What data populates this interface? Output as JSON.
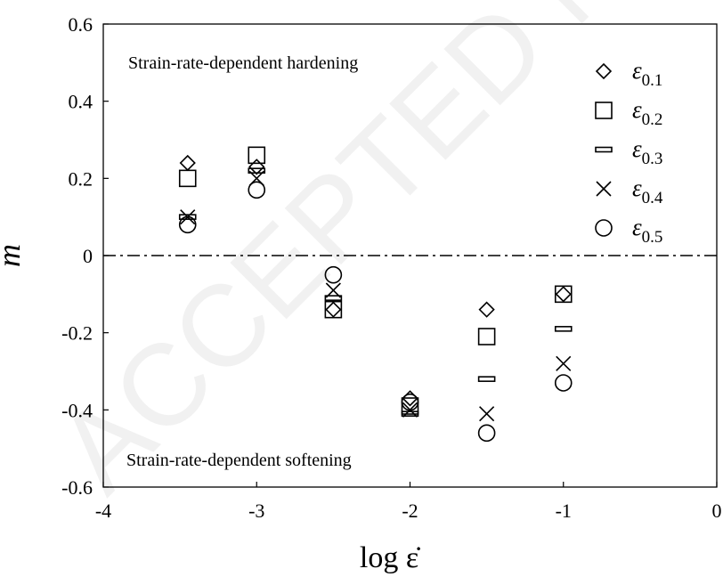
{
  "chart_data": {
    "type": "scatter",
    "xlabel": "log ε̇",
    "ylabel": "m",
    "xlim": [
      -4,
      0
    ],
    "ylim": [
      -0.6,
      0.6
    ],
    "xticks": [
      "-4",
      "-3",
      "-2",
      "-1",
      "0"
    ],
    "yticks": [
      "0.6",
      "0.4",
      "0.2",
      "0",
      "-0.2",
      "-0.4",
      "-0.6"
    ],
    "grid": false,
    "legend_position": "top-right",
    "reference_line": {
      "y": 0,
      "style": "dash-dot"
    },
    "annotations": {
      "top": "Strain-rate-dependent hardening",
      "bottom": "Strain-rate-dependent softening"
    },
    "watermark": "ACCEPTED MANUSCRIPT",
    "series": [
      {
        "name": "ε0.1",
        "symbol": "ε",
        "subscript": "0.1",
        "marker": "diamond",
        "x": [
          -3.45,
          -3.0,
          -2.5,
          -2.0,
          -1.5,
          -1.0
        ],
        "y": [
          0.24,
          0.23,
          -0.14,
          -0.37,
          -0.14,
          -0.1
        ]
      },
      {
        "name": "ε0.2",
        "symbol": "ε",
        "subscript": "0.2",
        "marker": "square",
        "x": [
          -3.45,
          -3.0,
          -2.5,
          -2.0,
          -1.5,
          -1.0
        ],
        "y": [
          0.2,
          0.26,
          -0.14,
          -0.39,
          -0.21,
          -0.1
        ]
      },
      {
        "name": "ε0.3",
        "symbol": "ε",
        "subscript": "0.3",
        "marker": "dash",
        "x": [
          -3.45,
          -3.0,
          -2.5,
          -2.0,
          -1.5,
          -1.0
        ],
        "y": [
          0.1,
          0.22,
          -0.11,
          -0.41,
          -0.32,
          -0.19
        ]
      },
      {
        "name": "ε0.4",
        "symbol": "ε",
        "subscript": "0.4",
        "marker": "cross",
        "x": [
          -3.45,
          -3.0,
          -2.5,
          -2.0,
          -1.5,
          -1.0
        ],
        "y": [
          0.1,
          0.2,
          -0.09,
          -0.4,
          -0.41,
          -0.28
        ]
      },
      {
        "name": "ε0.5",
        "symbol": "ε",
        "subscript": "0.5",
        "marker": "circle",
        "x": [
          -3.45,
          -3.0,
          -2.5,
          -2.0,
          -1.5,
          -1.0
        ],
        "y": [
          0.08,
          0.17,
          -0.05,
          -0.38,
          -0.46,
          -0.33
        ]
      }
    ]
  }
}
